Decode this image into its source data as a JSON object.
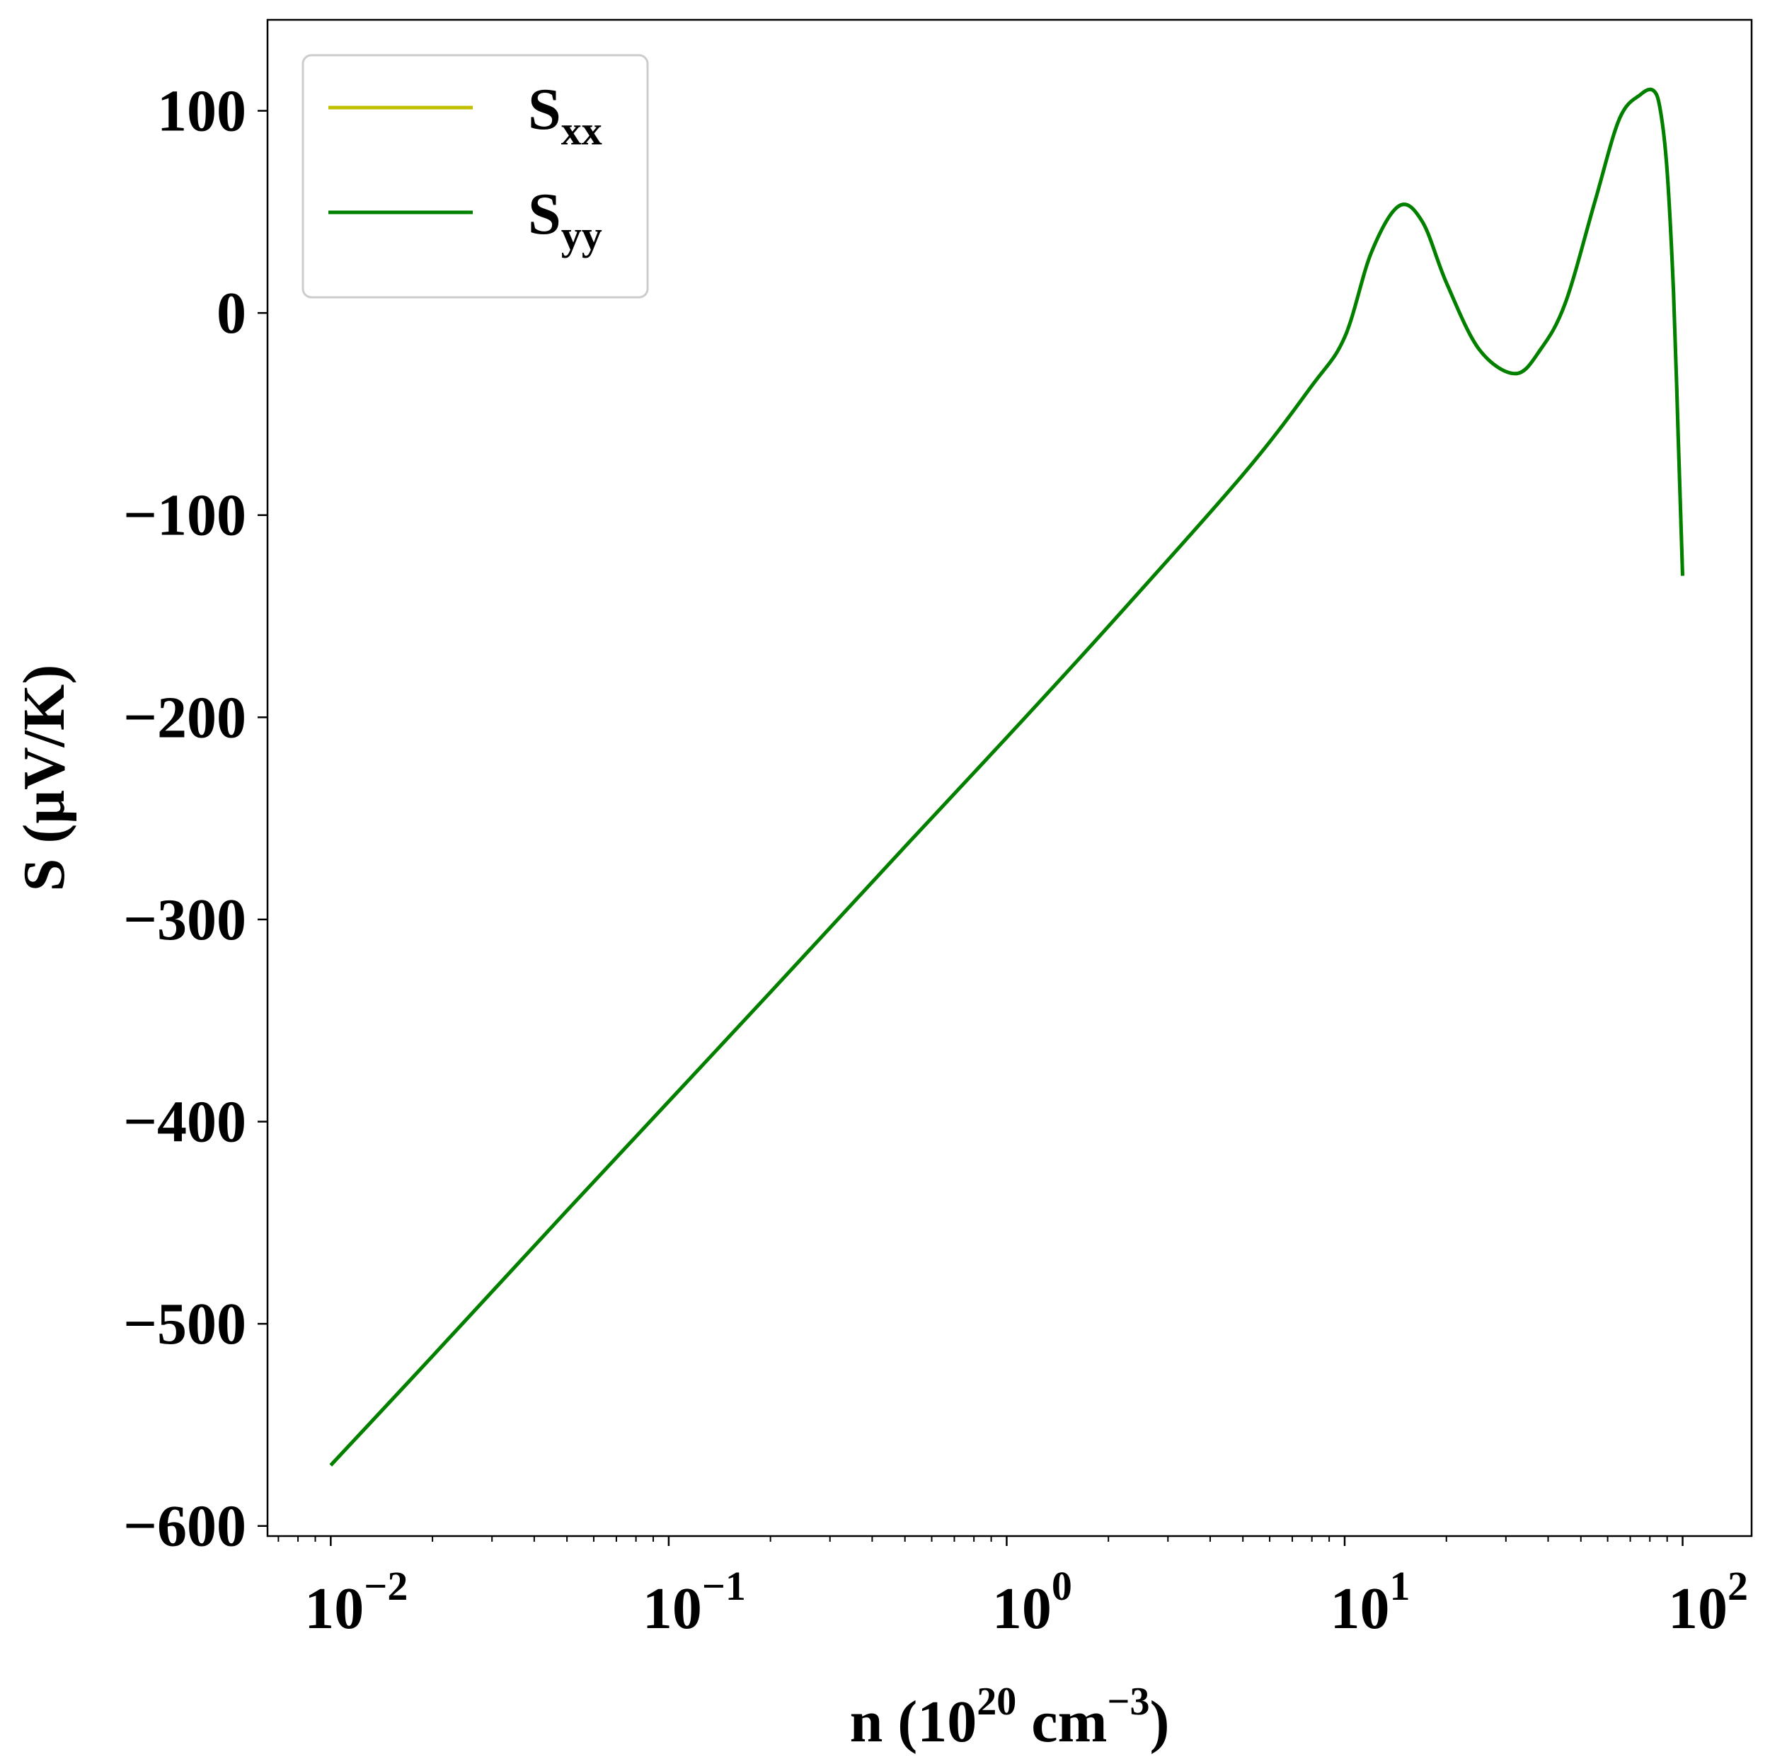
{
  "chart_data": {
    "type": "line",
    "title": "",
    "xlabel": {
      "prefix": "n (10",
      "sup1": "20",
      "mid": " cm",
      "sup2": "−3",
      "suffix": ")"
    },
    "ylabel": "S (μV/K)",
    "x_scale": "log",
    "xlim": [
      0.0065,
      160
    ],
    "ylim": [
      -605,
      145
    ],
    "x_ticks": [
      {
        "value": 0.01,
        "base": "10",
        "exp": "−2"
      },
      {
        "value": 0.1,
        "base": "10",
        "exp": "−1"
      },
      {
        "value": 1,
        "base": "10",
        "exp": "0"
      },
      {
        "value": 10,
        "base": "10",
        "exp": "1"
      },
      {
        "value": 100,
        "base": "10",
        "exp": "2"
      }
    ],
    "y_ticks": [
      {
        "value": 100,
        "label": "100"
      },
      {
        "value": 0,
        "label": "0"
      },
      {
        "value": -100,
        "label": "−100"
      },
      {
        "value": -200,
        "label": "−200"
      },
      {
        "value": -300,
        "label": "−300"
      },
      {
        "value": -400,
        "label": "−400"
      },
      {
        "value": -500,
        "label": "−500"
      },
      {
        "value": -600,
        "label": "−600"
      }
    ],
    "grid": false,
    "legend_position": "top-left",
    "series": [
      {
        "name": "S",
        "sub": "xx",
        "color": "#bfbf00",
        "x": [
          0.01,
          0.02,
          0.05,
          0.1,
          0.2,
          0.5,
          1,
          2,
          5,
          8,
          10,
          12,
          14.5,
          17,
          20,
          25,
          32,
          38,
          45,
          55,
          65,
          75,
          82,
          86,
          90,
          94,
          97,
          100
        ],
        "y": [
          -570,
          -516,
          -444,
          -390,
          -336,
          -264,
          -210,
          -155,
          -80,
          -36,
          -12,
          30,
          53,
          45,
          15,
          -18,
          -30,
          -18,
          5,
          55,
          96,
          108,
          110,
          100,
          70,
          10,
          -60,
          -130
        ]
      },
      {
        "name": "S",
        "sub": "yy",
        "color": "#008000",
        "x": [
          0.01,
          0.02,
          0.05,
          0.1,
          0.2,
          0.5,
          1,
          2,
          5,
          8,
          10,
          12,
          14.5,
          17,
          20,
          25,
          32,
          38,
          45,
          55,
          65,
          75,
          82,
          86,
          90,
          94,
          97,
          100
        ],
        "y": [
          -570,
          -516,
          -444,
          -390,
          -336,
          -264,
          -210,
          -155,
          -80,
          -36,
          -12,
          30,
          53,
          45,
          15,
          -18,
          -30,
          -18,
          5,
          55,
          96,
          108,
          110,
          100,
          70,
          10,
          -60,
          -130
        ]
      }
    ]
  }
}
